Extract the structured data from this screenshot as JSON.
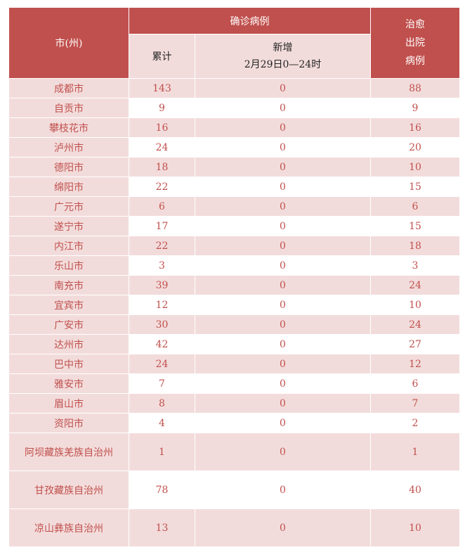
{
  "header": {
    "city": "市(州)",
    "confirmed": "确诊病例",
    "cumulative": "累计",
    "new": "新增",
    "new_period": "2月29日0—24时",
    "recovered_lines": [
      "治愈",
      "出院",
      "病例"
    ]
  },
  "rows": [
    {
      "city": "成都市",
      "cumulative": "143",
      "new": "0",
      "recovered": "88"
    },
    {
      "city": "自贡市",
      "cumulative": "9",
      "new": "0",
      "recovered": "9"
    },
    {
      "city": "攀枝花市",
      "cumulative": "16",
      "new": "0",
      "recovered": "16"
    },
    {
      "city": "泸州市",
      "cumulative": "24",
      "new": "0",
      "recovered": "20"
    },
    {
      "city": "德阳市",
      "cumulative": "18",
      "new": "0",
      "recovered": "10"
    },
    {
      "city": "绵阳市",
      "cumulative": "22",
      "new": "0",
      "recovered": "15"
    },
    {
      "city": "广元市",
      "cumulative": "6",
      "new": "0",
      "recovered": "6"
    },
    {
      "city": "遂宁市",
      "cumulative": "17",
      "new": "0",
      "recovered": "15"
    },
    {
      "city": "内江市",
      "cumulative": "22",
      "new": "0",
      "recovered": "18"
    },
    {
      "city": "乐山市",
      "cumulative": "3",
      "new": "0",
      "recovered": "3"
    },
    {
      "city": "南充市",
      "cumulative": "39",
      "new": "0",
      "recovered": "24"
    },
    {
      "city": "宜宾市",
      "cumulative": "12",
      "new": "0",
      "recovered": "10"
    },
    {
      "city": "广安市",
      "cumulative": "30",
      "new": "0",
      "recovered": "24"
    },
    {
      "city": "达州市",
      "cumulative": "42",
      "new": "0",
      "recovered": "27"
    },
    {
      "city": "巴中市",
      "cumulative": "24",
      "new": "0",
      "recovered": "12"
    },
    {
      "city": "雅安市",
      "cumulative": "7",
      "new": "0",
      "recovered": "6"
    },
    {
      "city": "眉山市",
      "cumulative": "8",
      "new": "0",
      "recovered": "7"
    },
    {
      "city": "资阳市",
      "cumulative": "4",
      "new": "0",
      "recovered": "2"
    },
    {
      "city": "阿坝藏族羌族自治州",
      "cumulative": "1",
      "new": "0",
      "recovered": "1"
    },
    {
      "city": "甘孜藏族自治州",
      "cumulative": "78",
      "new": "0",
      "recovered": "40"
    },
    {
      "city": "凉山彝族自治州",
      "cumulative": "13",
      "new": "0",
      "recovered": "10"
    }
  ],
  "colors": {
    "header_red": "#c0504d",
    "light_pink": "#f2dcdb",
    "text_red": "#c0504d"
  }
}
